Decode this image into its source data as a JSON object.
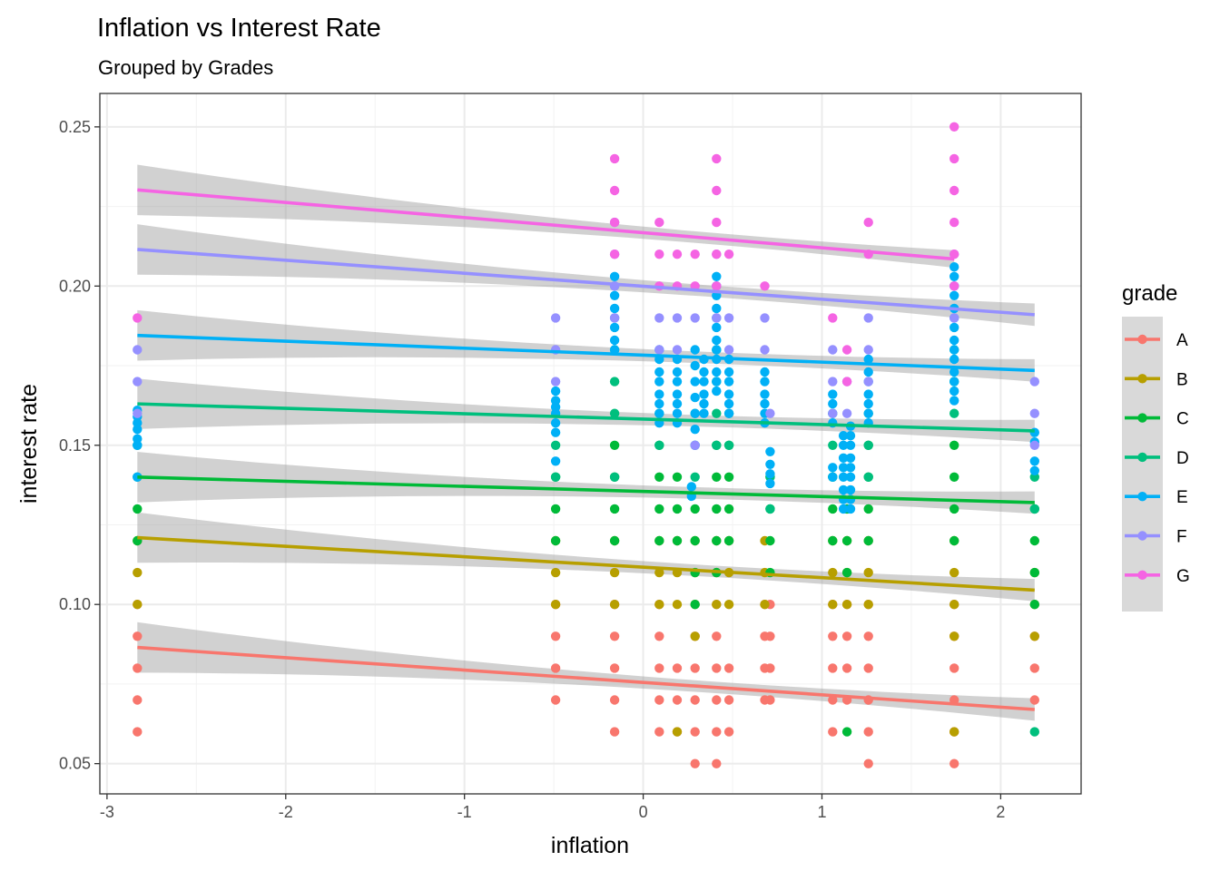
{
  "chart_data": {
    "type": "scatter",
    "title": "Inflation vs Interest Rate",
    "subtitle": "Grouped by Grades",
    "xlabel": "inflation",
    "ylabel": "interest rate",
    "xlim": [
      -3.04,
      2.45
    ],
    "ylim": [
      0.0405,
      0.2605
    ],
    "x_ticks": [
      -3,
      -2,
      -1,
      0,
      1,
      2
    ],
    "x_tick_labels": [
      "-3",
      "-2",
      "-1",
      "0",
      "1",
      "2"
    ],
    "y_ticks": [
      0.05,
      0.1,
      0.15,
      0.2,
      0.25
    ],
    "y_tick_labels": [
      "0.05",
      "0.10",
      "0.15",
      "0.20",
      "0.25"
    ],
    "grid": true,
    "legend": {
      "title": "grade",
      "position": "right"
    },
    "x_groups": [
      -2.83,
      -0.49,
      -0.16,
      0.09,
      0.29,
      0.41,
      0.48,
      0.68,
      0.71,
      1.06,
      1.14,
      1.26,
      1.74,
      2.19
    ],
    "series": [
      {
        "name": "A",
        "color": "#F8766D",
        "points": {
          "-2.83": [
            0.06,
            0.07,
            0.08,
            0.09,
            0.1
          ],
          "-0.49": [
            0.07,
            0.08,
            0.09,
            0.1
          ],
          "-0.16": [
            0.06,
            0.07,
            0.08,
            0.09,
            0.1
          ],
          "0.09": [
            0.06,
            0.07,
            0.08,
            0.09,
            0.1
          ],
          "0.19": [
            0.06,
            0.07,
            0.08
          ],
          "0.29": [
            0.05,
            0.06,
            0.07,
            0.08,
            0.09
          ],
          "0.41": [
            0.05,
            0.06,
            0.07,
            0.08,
            0.09,
            0.1
          ],
          "0.48": [
            0.06,
            0.07,
            0.08
          ],
          "0.68": [
            0.07,
            0.08,
            0.09,
            0.1
          ],
          "0.71": [
            0.07,
            0.08,
            0.09,
            0.1
          ],
          "1.06": [
            0.06,
            0.07,
            0.08,
            0.09,
            0.1
          ],
          "1.14": [
            0.07,
            0.08,
            0.09,
            0.1
          ],
          "1.26": [
            0.05,
            0.06,
            0.07,
            0.08,
            0.09,
            0.1
          ],
          "1.74": [
            0.05,
            0.06,
            0.07,
            0.08,
            0.09,
            0.1
          ],
          "2.19": [
            0.07,
            0.08,
            0.09
          ]
        },
        "trend": {
          "x": [
            -2.83,
            2.19
          ],
          "y": [
            0.0865,
            0.067
          ]
        }
      },
      {
        "name": "B",
        "color": "#B79F00",
        "points": {
          "-2.83": [
            0.1,
            0.11,
            0.12
          ],
          "-0.49": [
            0.1,
            0.11,
            0.12
          ],
          "-0.16": [
            0.1,
            0.11,
            0.12
          ],
          "0.09": [
            0.1,
            0.11,
            0.12
          ],
          "0.19": [
            0.06,
            0.1,
            0.11,
            0.12
          ],
          "0.29": [
            0.09,
            0.1,
            0.11,
            0.12
          ],
          "0.41": [
            0.1,
            0.11,
            0.12
          ],
          "0.48": [
            0.1,
            0.11,
            0.12
          ],
          "0.68": [
            0.1,
            0.11,
            0.12
          ],
          "1.06": [
            0.1,
            0.11,
            0.12
          ],
          "1.14": [
            0.1,
            0.11,
            0.12
          ],
          "1.26": [
            0.1,
            0.11,
            0.12
          ],
          "1.74": [
            0.06,
            0.09,
            0.1,
            0.11,
            0.12
          ],
          "2.19": [
            0.09,
            0.1,
            0.11
          ]
        },
        "trend": {
          "x": [
            -2.83,
            2.19
          ],
          "y": [
            0.121,
            0.1045
          ]
        }
      },
      {
        "name": "C",
        "color": "#00BA38",
        "points": {
          "-2.83": [
            0.12,
            0.13
          ],
          "-0.49": [
            0.12,
            0.13,
            0.14
          ],
          "-0.16": [
            0.12,
            0.13,
            0.14,
            0.15
          ],
          "0.09": [
            0.12,
            0.13,
            0.14,
            0.15
          ],
          "0.19": [
            0.12,
            0.13,
            0.14
          ],
          "0.29": [
            0.1,
            0.11,
            0.12,
            0.13
          ],
          "0.41": [
            0.11,
            0.12,
            0.13,
            0.14,
            0.15
          ],
          "0.48": [
            0.12,
            0.13,
            0.14,
            0.15
          ],
          "0.71": [
            0.11,
            0.12,
            0.13,
            0.14
          ],
          "1.06": [
            0.12,
            0.13,
            0.14
          ],
          "1.14": [
            0.06,
            0.11,
            0.12,
            0.13
          ],
          "1.26": [
            0.12,
            0.13,
            0.14,
            0.15
          ],
          "1.74": [
            0.12,
            0.13,
            0.14,
            0.15
          ],
          "2.19": [
            0.1,
            0.11,
            0.12,
            0.13
          ]
        },
        "trend": {
          "x": [
            -2.83,
            2.19
          ],
          "y": [
            0.14,
            0.132
          ]
        }
      },
      {
        "name": "D",
        "color": "#00BF7D",
        "points": {
          "-2.83": [
            0.14,
            0.15
          ],
          "-0.49": [
            0.14,
            0.15
          ],
          "-0.16": [
            0.14,
            0.16,
            0.17,
            0.18
          ],
          "0.09": [
            0.15,
            0.16
          ],
          "0.29": [
            0.14,
            0.15,
            0.16
          ],
          "0.41": [
            0.15,
            0.16,
            0.17,
            0.18
          ],
          "0.48": [
            0.15,
            0.16
          ],
          "0.71": [
            0.13,
            0.14
          ],
          "1.06": [
            0.14,
            0.15,
            0.16
          ],
          "1.26": [
            0.14,
            0.15,
            0.16
          ],
          "1.74": [
            0.16,
            0.17,
            0.18
          ],
          "2.19": [
            0.06,
            0.13,
            0.14
          ]
        },
        "trend": {
          "x": [
            -2.83,
            2.19
          ],
          "y": [
            0.163,
            0.1545
          ]
        }
      },
      {
        "name": "E",
        "color": "#00B0F6",
        "points": {
          "-2.83": [
            0.14,
            0.15,
            0.152,
            0.155,
            0.157,
            0.159,
            0.161
          ],
          "-0.49": [
            0.145,
            0.154,
            0.157,
            0.16,
            0.162,
            0.164,
            0.167
          ],
          "-0.16": [
            0.18,
            0.183,
            0.187,
            0.19,
            0.193,
            0.197,
            0.2,
            0.203
          ],
          "0.09": [
            0.157,
            0.16,
            0.163,
            0.166,
            0.17,
            0.173,
            0.177,
            0.18
          ],
          "0.19": [
            0.157,
            0.16,
            0.163,
            0.166,
            0.17,
            0.173,
            0.177
          ],
          "0.27": [
            0.134,
            0.137
          ],
          "0.29": [
            0.15,
            0.155,
            0.16,
            0.165,
            0.17,
            0.175,
            0.18
          ],
          "0.34": [
            0.16,
            0.163,
            0.166,
            0.17,
            0.173,
            0.177
          ],
          "0.41": [
            0.167,
            0.17,
            0.173,
            0.177,
            0.18,
            0.183,
            0.187,
            0.19,
            0.193,
            0.197,
            0.2,
            0.203
          ],
          "0.48": [
            0.16,
            0.163,
            0.166,
            0.17,
            0.173,
            0.177
          ],
          "0.68": [
            0.157,
            0.16,
            0.163,
            0.166,
            0.17,
            0.173
          ],
          "0.71": [
            0.138,
            0.141,
            0.144,
            0.148
          ],
          "1.06": [
            0.14,
            0.143,
            0.157,
            0.16,
            0.163,
            0.166
          ],
          "1.12": [
            0.13,
            0.133,
            0.136,
            0.14,
            0.143,
            0.146,
            0.15,
            0.153
          ],
          "1.16": [
            0.13,
            0.133,
            0.136,
            0.14,
            0.143,
            0.146,
            0.15,
            0.153,
            0.156
          ],
          "1.26": [
            0.157,
            0.16,
            0.163,
            0.166,
            0.17,
            0.173,
            0.177
          ],
          "1.74": [
            0.164,
            0.167,
            0.17,
            0.173,
            0.177,
            0.18,
            0.183,
            0.187,
            0.19,
            0.193,
            0.197,
            0.2,
            0.203,
            0.206
          ],
          "2.19": [
            0.142,
            0.145,
            0.151,
            0.154
          ]
        },
        "trend": {
          "x": [
            -2.83,
            2.19
          ],
          "y": [
            0.1845,
            0.1735
          ]
        }
      },
      {
        "name": "F",
        "color": "#9590FF",
        "points": {
          "-2.83": [
            0.16,
            0.17,
            0.18
          ],
          "-0.49": [
            0.17,
            0.18,
            0.19
          ],
          "-0.16": [
            0.19,
            0.2,
            0.21,
            0.22
          ],
          "0.09": [
            0.18,
            0.19
          ],
          "0.19": [
            0.18,
            0.19
          ],
          "0.29": [
            0.15,
            0.19
          ],
          "0.41": [
            0.19,
            0.2,
            0.21
          ],
          "0.48": [
            0.18,
            0.19
          ],
          "0.68": [
            0.18,
            0.19
          ],
          "0.71": [
            0.16
          ],
          "1.06": [
            0.16,
            0.17,
            0.18
          ],
          "1.14": [
            0.16,
            0.17
          ],
          "1.26": [
            0.17,
            0.18,
            0.19
          ],
          "1.74": [
            0.19,
            0.2,
            0.21
          ],
          "2.19": [
            0.15,
            0.16,
            0.17
          ]
        },
        "trend": {
          "x": [
            -2.83,
            2.19
          ],
          "y": [
            0.2115,
            0.191
          ]
        }
      },
      {
        "name": "G",
        "color": "#F564E3",
        "points": {
          "-2.83": [
            0.19
          ],
          "-0.16": [
            0.21,
            0.22,
            0.23,
            0.24
          ],
          "0.09": [
            0.2,
            0.21,
            0.22
          ],
          "0.19": [
            0.2,
            0.21
          ],
          "0.29": [
            0.2,
            0.21
          ],
          "0.41": [
            0.2,
            0.21,
            0.22,
            0.23,
            0.24
          ],
          "0.48": [
            0.21
          ],
          "0.68": [
            0.2
          ],
          "1.06": [
            0.19
          ],
          "1.14": [
            0.17,
            0.18
          ],
          "1.26": [
            0.21,
            0.22
          ],
          "1.74": [
            0.2,
            0.21,
            0.22,
            0.23,
            0.24,
            0.25
          ]
        },
        "trend": {
          "x": [
            -2.83,
            1.74
          ],
          "y": [
            0.2302,
            0.2085
          ]
        }
      }
    ]
  }
}
